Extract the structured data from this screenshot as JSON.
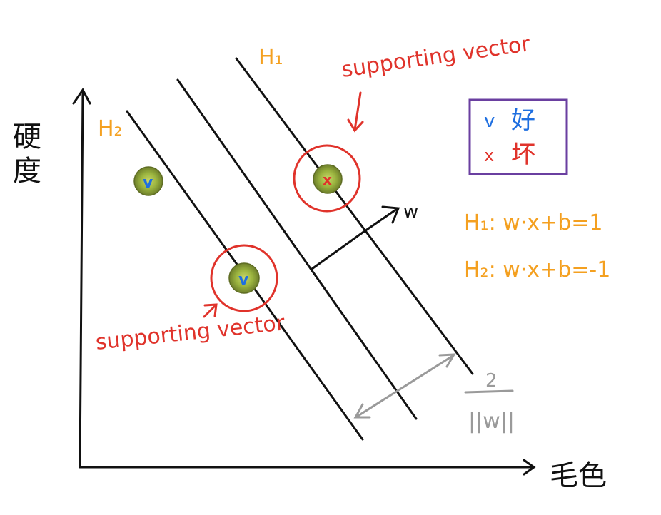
{
  "axes": {
    "y_label": "硬度",
    "x_label": "毛色"
  },
  "hyperplanes": {
    "h1_label": "H₁",
    "h2_label": "H₂",
    "normal_label": "w"
  },
  "annotations": {
    "support_top": "supporting vector",
    "support_bottom": "supporting vector"
  },
  "legend": {
    "good_symbol": "v",
    "good_label": "好",
    "bad_symbol": "x",
    "bad_label": "坏",
    "border_color": "#6a3fa0"
  },
  "equations": {
    "h1": "H₁: w·x+b=1",
    "h2": "H₂: w·x+b=-1"
  },
  "margin": {
    "numerator": "2",
    "denominator": "||w||"
  },
  "points": [
    {
      "name": "good-kiwi-left",
      "mark": "v",
      "class": "good"
    },
    {
      "name": "good-kiwi-support",
      "mark": "v",
      "class": "good"
    },
    {
      "name": "bad-kiwi-support",
      "mark": "x",
      "class": "bad"
    }
  ],
  "colors": {
    "label_orange": "#f4a020",
    "annotation_red": "#e0332b",
    "good_blue": "#1f6fe0",
    "margin_gray": "#9a9a9a",
    "kiwi_green": "#8ea83a"
  }
}
